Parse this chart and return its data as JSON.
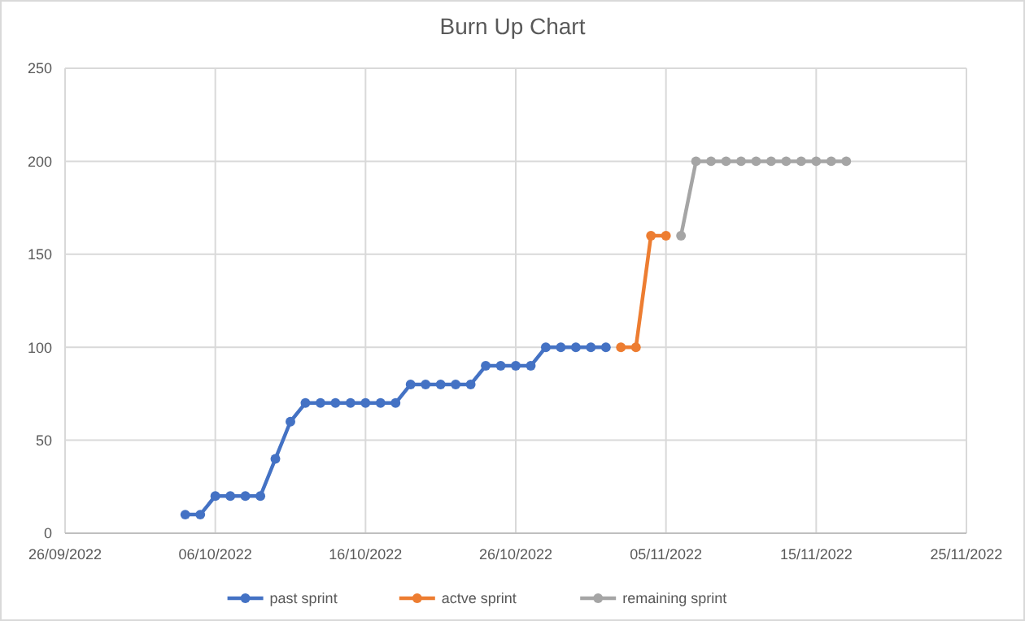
{
  "chart_data": {
    "type": "line",
    "title": "Burn Up Chart",
    "xlim": [
      "2022-09-26",
      "2022-11-25"
    ],
    "xticks": [
      {
        "value": "2022-09-26",
        "label": "26/09/2022"
      },
      {
        "value": "2022-10-06",
        "label": "06/10/2022"
      },
      {
        "value": "2022-10-16",
        "label": "16/10/2022"
      },
      {
        "value": "2022-10-26",
        "label": "26/10/2022"
      },
      {
        "value": "2022-11-05",
        "label": "05/11/2022"
      },
      {
        "value": "2022-11-15",
        "label": "15/11/2022"
      },
      {
        "value": "2022-11-25",
        "label": "25/11/2022"
      }
    ],
    "ylim": [
      0,
      250
    ],
    "yticks": [
      0,
      50,
      100,
      150,
      200,
      250
    ],
    "grid": true,
    "legend": "bottom",
    "marker": "circle",
    "line_style": "solid",
    "series": [
      {
        "name": "past sprint",
        "color": "#4472c4",
        "x": [
          "2022-10-04",
          "2022-10-05",
          "2022-10-06",
          "2022-10-07",
          "2022-10-08",
          "2022-10-09",
          "2022-10-10",
          "2022-10-11",
          "2022-10-12",
          "2022-10-13",
          "2022-10-14",
          "2022-10-15",
          "2022-10-16",
          "2022-10-17",
          "2022-10-18",
          "2022-10-19",
          "2022-10-20",
          "2022-10-21",
          "2022-10-22",
          "2022-10-23",
          "2022-10-24",
          "2022-10-25",
          "2022-10-26",
          "2022-10-27",
          "2022-10-28",
          "2022-10-29",
          "2022-10-30",
          "2022-10-31",
          "2022-11-01"
        ],
        "values": [
          10,
          10,
          20,
          20,
          20,
          20,
          40,
          60,
          70,
          70,
          70,
          70,
          70,
          70,
          70,
          80,
          80,
          80,
          80,
          80,
          90,
          90,
          90,
          90,
          100,
          100,
          100,
          100,
          100
        ]
      },
      {
        "name": "actve sprint",
        "color": "#ed7d31",
        "x": [
          "2022-11-02",
          "2022-11-03",
          "2022-11-04",
          "2022-11-05"
        ],
        "values": [
          100,
          100,
          160,
          160
        ]
      },
      {
        "name": "remaining sprint",
        "color": "#a5a5a5",
        "x": [
          "2022-11-06",
          "2022-11-07",
          "2022-11-08",
          "2022-11-09",
          "2022-11-10",
          "2022-11-11",
          "2022-11-12",
          "2022-11-13",
          "2022-11-14",
          "2022-11-15",
          "2022-11-16",
          "2022-11-17"
        ],
        "values": [
          160,
          200,
          200,
          200,
          200,
          200,
          200,
          200,
          200,
          200,
          200,
          200
        ]
      }
    ]
  }
}
